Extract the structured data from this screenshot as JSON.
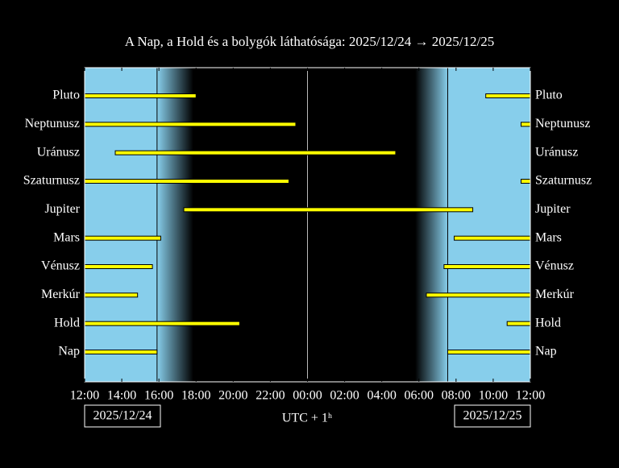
{
  "chart_data": {
    "type": "timeline",
    "title": "A Nap, a Hold és a bolygók láthatósága: 2025/12/24 → 2025/12/25",
    "xlabel": "UTC + 1ʰ",
    "dates": [
      "2025/12/24",
      "2025/12/25"
    ],
    "xlim": [
      0,
      24
    ],
    "xticks": [
      {
        "value": 0,
        "label": "12:00"
      },
      {
        "value": 2,
        "label": "14:00"
      },
      {
        "value": 4,
        "label": "16:00"
      },
      {
        "value": 6,
        "label": "18:00"
      },
      {
        "value": 8,
        "label": "20:00"
      },
      {
        "value": 10,
        "label": "22:00"
      },
      {
        "value": 12,
        "label": "00:00"
      },
      {
        "value": 14,
        "label": "02:00"
      },
      {
        "value": 16,
        "label": "04:00"
      },
      {
        "value": 18,
        "label": "06:00"
      },
      {
        "value": 20,
        "label": "08:00"
      },
      {
        "value": 22,
        "label": "10:00"
      },
      {
        "value": 24,
        "label": "12:00"
      }
    ],
    "day_color": "#87ceeb",
    "night_color": "#000000",
    "bar_color": "#ffff00",
    "twilight": [
      [
        3.9,
        5.85
      ],
      [
        17.8,
        19.55
      ]
    ],
    "midnight": 12,
    "series": [
      {
        "name": "Pluto",
        "segments": [
          [
            0,
            6.0
          ],
          [
            21.6,
            24
          ]
        ]
      },
      {
        "name": "Neptunusz",
        "segments": [
          [
            0,
            11.37
          ],
          [
            23.5,
            24
          ]
        ]
      },
      {
        "name": "Uránusz",
        "segments": [
          [
            1.65,
            16.75
          ]
        ]
      },
      {
        "name": "Szaturnusz",
        "segments": [
          [
            0,
            11.0
          ],
          [
            23.5,
            24
          ]
        ]
      },
      {
        "name": "Jupiter",
        "segments": [
          [
            5.34,
            20.9
          ]
        ]
      },
      {
        "name": "Mars",
        "segments": [
          [
            0,
            4.1
          ],
          [
            19.9,
            24
          ]
        ]
      },
      {
        "name": "Vénusz",
        "segments": [
          [
            0,
            3.65
          ],
          [
            19.35,
            24
          ]
        ]
      },
      {
        "name": "Merkúr",
        "segments": [
          [
            0,
            2.85
          ],
          [
            18.4,
            24
          ]
        ]
      },
      {
        "name": "Hold",
        "segments": [
          [
            0,
            8.35
          ],
          [
            22.75,
            24
          ]
        ]
      },
      {
        "name": "Nap",
        "segments": [
          [
            0,
            3.9
          ],
          [
            19.55,
            24
          ]
        ]
      }
    ]
  }
}
